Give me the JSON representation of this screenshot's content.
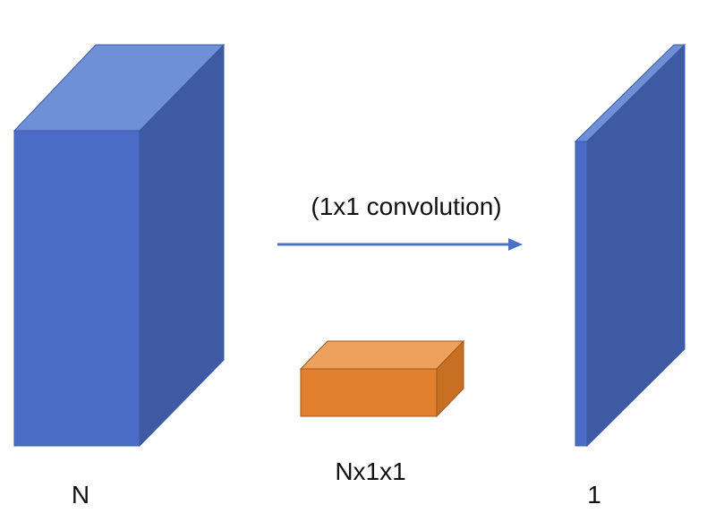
{
  "labels": {
    "operation": "(1x1 convolution)",
    "input_channels": "N",
    "filter_shape": "Nx1x1",
    "output_channels": "1"
  },
  "colors": {
    "block_front": "#4a6cc6",
    "block_top": "#6f8fd6",
    "block_side": "#3e5aa3",
    "block_edge": "#3a5aa8",
    "filter_front": "#e2802f",
    "filter_top": "#eda15d",
    "filter_side": "#c96f24",
    "filter_edge": "#9a5a20",
    "arrow": "#4a72c4",
    "text": "#111111"
  }
}
